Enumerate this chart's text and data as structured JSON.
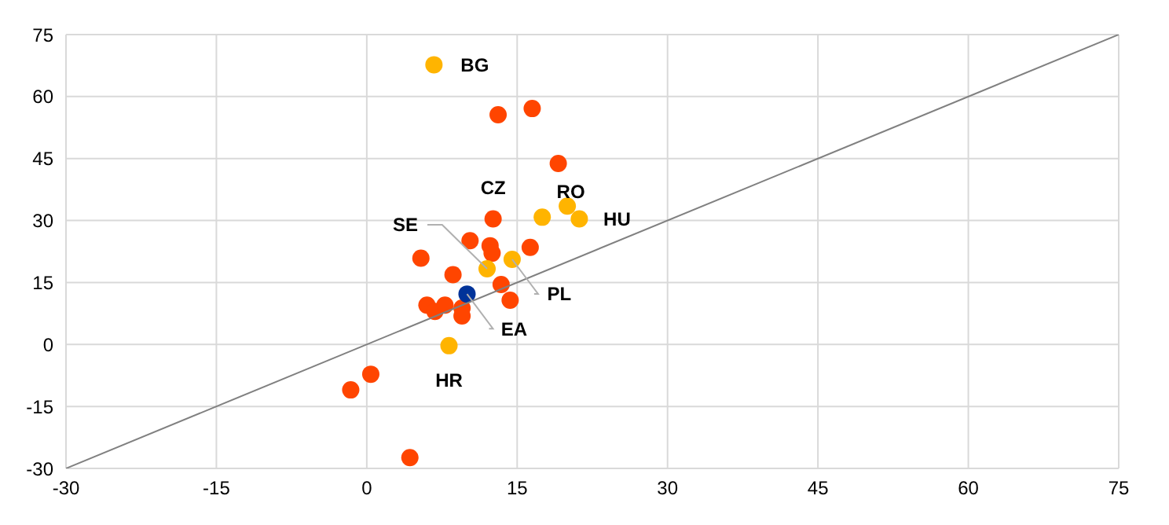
{
  "chart_data": {
    "type": "scatter",
    "xlim": [
      -30,
      75
    ],
    "ylim": [
      -30,
      75
    ],
    "xticks": [
      -30,
      -15,
      0,
      15,
      30,
      45,
      60,
      75
    ],
    "yticks": [
      -30,
      -15,
      0,
      15,
      30,
      45,
      60,
      75
    ],
    "grid": true,
    "marker": "circle",
    "series": [
      {
        "color": "#ff4500",
        "x": [
          13.1,
          16.5,
          19.1,
          12.6,
          10.3,
          12.3,
          12.5,
          16.3,
          5.4,
          8.6,
          13.4,
          14.3,
          6.0,
          6.8,
          7.8,
          9.5,
          9.5,
          0.4,
          -1.6,
          4.3
        ],
        "values": [
          55.6,
          57.1,
          43.8,
          30.4,
          25.1,
          23.9,
          22.1,
          23.5,
          20.9,
          16.9,
          14.5,
          10.7,
          9.5,
          8.0,
          9.5,
          8.8,
          6.9,
          -7.2,
          -11.0,
          -27.4
        ]
      },
      {
        "color": "#ffb400",
        "x": [
          6.7,
          17.5,
          20.0,
          21.2,
          14.5,
          12.0,
          8.2
        ],
        "values": [
          67.7,
          30.8,
          33.5,
          30.4,
          20.6,
          18.3,
          -0.3
        ]
      },
      {
        "color": "#003399",
        "x": [
          10.0
        ],
        "values": [
          12.2
        ]
      },
      {
        "type": "line",
        "marker": "none",
        "color": "#808080",
        "x": [
          -30,
          75
        ],
        "values": [
          -30,
          75
        ]
      }
    ],
    "annotations": [
      {
        "text": "BG",
        "x": 6.7,
        "y": 67.7
      },
      {
        "text": "CZ",
        "x": 12.6,
        "y": 30.4
      },
      {
        "text": "RO",
        "x": 19.1,
        "y": 43.8
      },
      {
        "text": "HU",
        "x": 21.2,
        "y": 30.4
      },
      {
        "text": "SE",
        "x": 12.0,
        "y": 18.3
      },
      {
        "text": "PL",
        "x": 14.5,
        "y": 20.6
      },
      {
        "text": "EA",
        "x": 10.0,
        "y": 12.2
      },
      {
        "text": "HR",
        "x": 8.2,
        "y": -0.3
      }
    ]
  }
}
